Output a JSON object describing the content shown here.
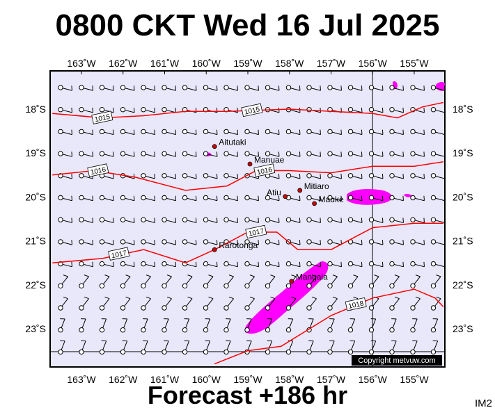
{
  "title": "0800 CKT Wed 16 Jul 2025",
  "subtitle": "Forecast +186 hr",
  "tag": "IM2",
  "copyright": "Copyright metvuw.com",
  "lon_labels": [
    "163˚W",
    "162˚W",
    "161˚W",
    "160˚W",
    "159˚W",
    "158˚W",
    "157˚W",
    "156˚W",
    "155˚W"
  ],
  "lat_labels": [
    "18˚S",
    "19˚S",
    "20˚S",
    "21˚S",
    "22˚S",
    "23˚S"
  ],
  "places": [
    {
      "name": "Aitutaki",
      "lon": -159.8,
      "lat": -18.85
    },
    {
      "name": "Manuae",
      "lon": -158.95,
      "lat": -19.25
    },
    {
      "name": "Mitiaro",
      "lon": -157.75,
      "lat": -19.85
    },
    {
      "name": "Atiu",
      "lon": -158.1,
      "lat": -19.99
    },
    {
      "name": "Mauke",
      "lon": -157.4,
      "lat": -20.15
    },
    {
      "name": "Rarotonga",
      "lon": -159.8,
      "lat": -21.2
    },
    {
      "name": "Mangaia",
      "lon": -157.95,
      "lat": -21.92
    }
  ],
  "isobars": [
    {
      "label": "1015",
      "points": [
        [
          -163.7,
          -18.1
        ],
        [
          -162.5,
          -18.2
        ],
        [
          -161.5,
          -18.15
        ],
        [
          -160.5,
          -18.05
        ],
        [
          -159.5,
          -18.05
        ],
        [
          -158.0,
          -18.0
        ],
        [
          -157.0,
          -18.05
        ],
        [
          -156.0,
          -18.1
        ],
        [
          -155.4,
          -18.2
        ],
        [
          -154.8,
          -17.95
        ],
        [
          -154.3,
          -17.85
        ]
      ]
    },
    {
      "label": "1016",
      "points": [
        [
          -163.7,
          -19.5
        ],
        [
          -162.7,
          -19.4
        ],
        [
          -161.7,
          -19.55
        ],
        [
          -160.5,
          -19.85
        ],
        [
          -159.5,
          -19.75
        ],
        [
          -158.8,
          -19.4
        ],
        [
          -158.0,
          -19.4
        ],
        [
          -157.0,
          -19.45
        ],
        [
          -156.0,
          -19.3
        ],
        [
          -155.0,
          -19.3
        ],
        [
          -154.3,
          -19.2
        ]
      ]
    },
    {
      "label": "1017",
      "points": [
        [
          -163.7,
          -21.5
        ],
        [
          -162.5,
          -21.4
        ],
        [
          -161.5,
          -21.2
        ],
        [
          -160.5,
          -21.5
        ],
        [
          -159.8,
          -21.2
        ],
        [
          -159.0,
          -20.8
        ],
        [
          -158.3,
          -20.8
        ],
        [
          -157.8,
          -21.2
        ],
        [
          -157.0,
          -21.2
        ],
        [
          -156.0,
          -20.7
        ],
        [
          -155.0,
          -20.6
        ],
        [
          -154.3,
          -20.6
        ]
      ]
    },
    {
      "label": "1018",
      "points": [
        [
          -159.8,
          -23.8
        ],
        [
          -159.0,
          -23.5
        ],
        [
          -158.2,
          -23.4
        ],
        [
          -157.0,
          -22.7
        ],
        [
          -156.0,
          -22.3
        ],
        [
          -155.0,
          -22.1
        ],
        [
          -154.5,
          -22.3
        ],
        [
          -154.3,
          -22.5
        ]
      ]
    }
  ]
}
